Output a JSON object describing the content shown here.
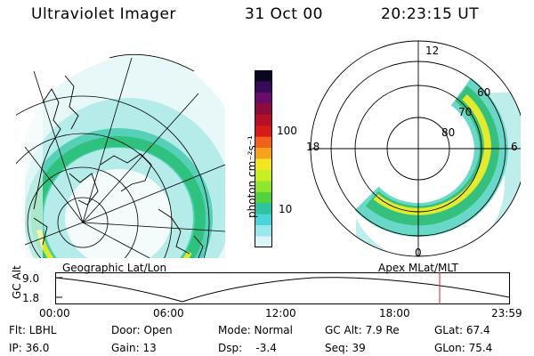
{
  "header": {
    "instrument": "Ultraviolet Imager",
    "date": "31 Oct 00",
    "time": "20:23:15 UT"
  },
  "colorbar": {
    "unit": "photon cm⁻²s⁻¹",
    "ticks": [
      "100",
      "10"
    ],
    "colors": [
      "#0a0520",
      "#3a0a5a",
      "#6a0d6a",
      "#8e0b3a",
      "#b5102a",
      "#d81a18",
      "#f0621a",
      "#f7a21a",
      "#f4e61e",
      "#c9ef24",
      "#8fe62e",
      "#52d23c",
      "#2ec4a2",
      "#48d6d8",
      "#9ae8ee",
      "#dcf6f8"
    ]
  },
  "map_left": {
    "label": "Geographic Lat/Lon",
    "colors": {
      "outer": "#dff4f4",
      "mid": "#6fd6c8",
      "band": "#36c28c",
      "bright": "#e3ee30",
      "core": "#f4c61e"
    }
  },
  "map_right": {
    "label": "Apex  MLat/MLT",
    "mlt_labels": {
      "top": "12",
      "bottom": "0",
      "left": "18",
      "right": "6"
    },
    "lat_labels": [
      "60",
      "70",
      "80"
    ]
  },
  "altitude_plot": {
    "ylabel": "GC Alt",
    "yticks": [
      "9.0",
      "1.8"
    ],
    "xticks": [
      "00:00",
      "06:00",
      "12:00",
      "18:00",
      "23:59"
    ],
    "current_time_color": "#e02020"
  },
  "status": {
    "row1": [
      "Flt: LBHL",
      "Door: Open",
      "Mode: Normal",
      "GC Alt: 7.9 Re",
      "GLat: 67.4"
    ],
    "row2": [
      "IP: 36.0",
      "Gain: 13",
      "Dsp:    -3.4",
      "Seq: 39",
      "GLon: 75.4"
    ]
  }
}
